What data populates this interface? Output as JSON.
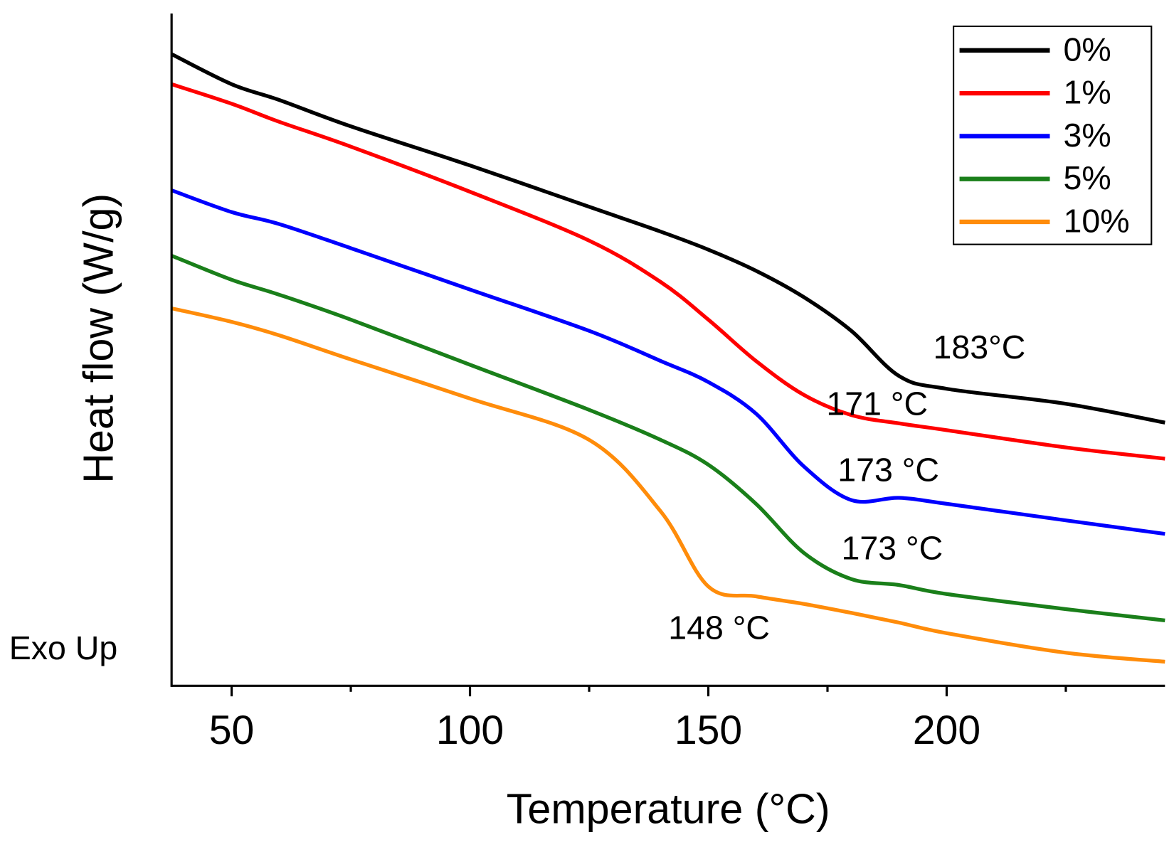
{
  "chart_data": {
    "type": "line",
    "xlabel": "Temperature (°C)",
    "ylabel": "Heat flow (W/g)",
    "side_label": "Exo Up",
    "x": [
      37.4,
      50,
      60,
      75,
      100,
      125,
      140,
      150,
      160,
      170,
      180,
      190,
      200,
      225,
      245.8
    ],
    "xlim": [
      37.4,
      245.8
    ],
    "xticks": [
      50,
      100,
      150,
      200
    ],
    "xminor_ticks": [
      75,
      125,
      175,
      225
    ],
    "ylim": [
      0,
      100
    ],
    "legend": "upper right",
    "series": [
      {
        "name": "0%",
        "color": "#000000",
        "values": [
          93.96,
          89.49,
          87.14,
          83.22,
          77.4,
          71.25,
          67.56,
          64.88,
          61.74,
          57.83,
          52.8,
          46.09,
          44.18,
          41.95,
          39.15
        ]
      },
      {
        "name": "1%",
        "color": "#ff0000",
        "values": [
          89.49,
          86.58,
          83.89,
          80.2,
          73.49,
          66.22,
          60.07,
          54.47,
          48.32,
          43.29,
          40.27,
          39.04,
          38.03,
          35.46,
          33.78
        ]
      },
      {
        "name": "3%",
        "color": "#0000ff",
        "values": [
          73.71,
          70.47,
          68.68,
          65.1,
          58.95,
          52.8,
          48.32,
          45.19,
          40.49,
          32.66,
          27.63,
          27.96,
          27.07,
          24.61,
          22.6
        ]
      },
      {
        "name": "5%",
        "color": "#1a7f1a",
        "values": [
          63.98,
          60.4,
          58.17,
          54.47,
          47.76,
          41.05,
          36.58,
          32.89,
          27.07,
          19.8,
          15.88,
          14.99,
          13.65,
          11.41,
          9.73
        ]
      },
      {
        "name": "10%",
        "color": "#ff8c0a",
        "values": [
          56.15,
          54.14,
          52.13,
          48.55,
          42.73,
          36.58,
          25.95,
          14.77,
          13.31,
          12.19,
          10.85,
          9.4,
          7.83,
          4.92,
          3.58
        ]
      }
    ],
    "annotations": [
      "183°C",
      "171 °C",
      "173 °C",
      "173 °C",
      "148 °C"
    ]
  }
}
